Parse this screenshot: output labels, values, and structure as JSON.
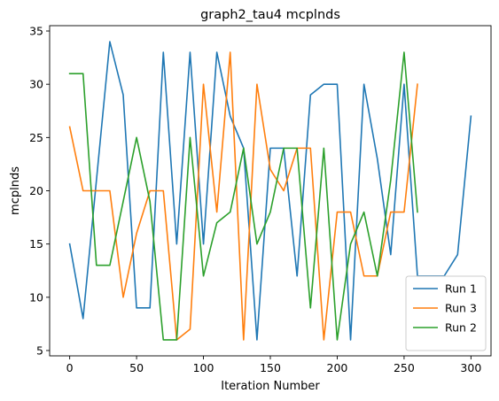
{
  "chart_data": {
    "type": "line",
    "title": "graph2_tau4 mcplnds",
    "xlabel": "Iteration Number",
    "ylabel": "mcplnds",
    "xlim": [
      -15,
      315
    ],
    "ylim": [
      4.5,
      35.5
    ],
    "xticks": [
      0,
      50,
      100,
      150,
      200,
      250,
      300
    ],
    "yticks": [
      5,
      10,
      15,
      20,
      25,
      30,
      35
    ],
    "grid": false,
    "legend_position": "lower-right",
    "series": [
      {
        "name": "Run 1",
        "color": "#1f77b4",
        "x": [
          0,
          10,
          20,
          30,
          40,
          50,
          60,
          70,
          80,
          90,
          100,
          110,
          120,
          130,
          140,
          150,
          160,
          170,
          180,
          190,
          200,
          210,
          220,
          230,
          240,
          250,
          260,
          270,
          280,
          290,
          300
        ],
        "y": [
          15,
          8,
          21,
          34,
          29,
          9,
          9,
          33,
          15,
          33,
          15,
          33,
          27,
          24,
          6,
          24,
          24,
          12,
          29,
          30,
          30,
          6,
          30,
          23,
          14,
          30,
          12,
          12,
          12,
          14,
          27
        ]
      },
      {
        "name": "Run 3",
        "color": "#ff7f0e",
        "x": [
          0,
          10,
          20,
          30,
          40,
          50,
          60,
          70,
          80,
          90,
          100,
          110,
          120,
          130,
          140,
          150,
          160,
          170,
          180,
          190,
          200,
          210,
          220,
          230,
          240,
          250,
          260
        ],
        "y": [
          26,
          20,
          20,
          20,
          10,
          16,
          20,
          20,
          6,
          7,
          30,
          18,
          33,
          6,
          30,
          22,
          20,
          24,
          24,
          6,
          18,
          18,
          12,
          12,
          18,
          18,
          30
        ]
      },
      {
        "name": "Run 2",
        "color": "#2ca02c",
        "x": [
          0,
          10,
          20,
          30,
          40,
          50,
          60,
          70,
          80,
          90,
          100,
          110,
          120,
          130,
          140,
          150,
          160,
          170,
          180,
          190,
          200,
          210,
          220,
          230,
          240,
          250,
          260
        ],
        "y": [
          31,
          31,
          13,
          13,
          19,
          25,
          19,
          6,
          6,
          25,
          12,
          17,
          18,
          24,
          15,
          18,
          24,
          24,
          9,
          24,
          6,
          15,
          18,
          12,
          21,
          33,
          18
        ]
      }
    ]
  }
}
